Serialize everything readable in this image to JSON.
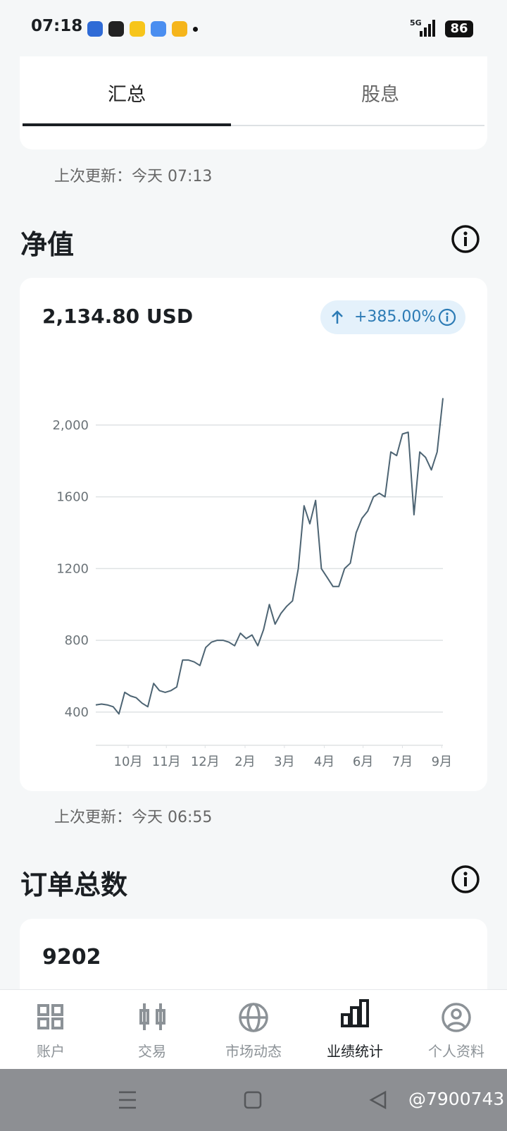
{
  "status_bar": {
    "time": "07:18",
    "network": "5G",
    "battery": "86"
  },
  "tabs": [
    "汇总",
    "股息"
  ],
  "summary_update": "上次更新：今天 07:13",
  "net_value": {
    "title": "净值",
    "amount": "2,134.80 USD",
    "change": "+385.00%",
    "update": "上次更新：今天 06:55"
  },
  "chart_data": {
    "type": "line",
    "color": "#4d6473",
    "grid": true,
    "values": [
      440,
      445,
      440,
      430,
      390,
      510,
      490,
      480,
      450,
      430,
      560,
      520,
      510,
      520,
      540,
      690,
      690,
      680,
      660,
      760,
      790,
      800,
      800,
      790,
      770,
      840,
      810,
      830,
      770,
      860,
      1000,
      890,
      950,
      990,
      1020,
      1200,
      1550,
      1450,
      1580,
      1200,
      1150,
      1100,
      1100,
      1200,
      1230,
      1400,
      1480,
      1520,
      1600,
      1620,
      1600,
      1850,
      1830,
      1950,
      1960,
      1500,
      1850,
      1820,
      1750,
      1850,
      2150
    ],
    "xlim": [
      0,
      60
    ],
    "xticks": [
      {
        "value": 5.6,
        "label": "10月"
      },
      {
        "value": 12.2,
        "label": "11月"
      },
      {
        "value": 18.9,
        "label": "12月"
      },
      {
        "value": 25.8,
        "label": "2月"
      },
      {
        "value": 32.6,
        "label": "3月"
      },
      {
        "value": 39.5,
        "label": "4月"
      },
      {
        "value": 46.2,
        "label": "6月"
      },
      {
        "value": 53,
        "label": "7月"
      },
      {
        "value": 59.8,
        "label": "9月"
      }
    ],
    "ylim": [
      215,
      2180
    ],
    "yticks": [
      400,
      800,
      1200,
      1600,
      {
        "value": 2000,
        "label": "2,000"
      }
    ]
  },
  "orders": {
    "title": "订单总数",
    "value": "9202"
  },
  "nav": [
    "账户",
    "交易",
    "市场动态",
    "业绩统计",
    "个人资料"
  ],
  "watermark": "@7900743"
}
